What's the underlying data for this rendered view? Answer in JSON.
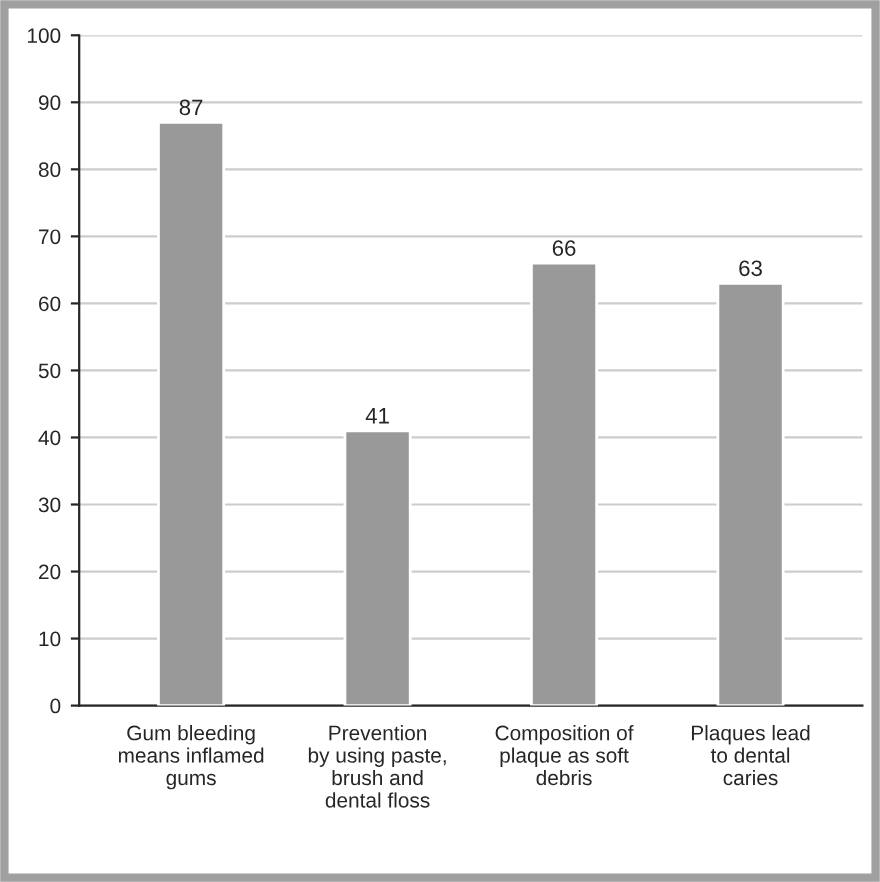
{
  "chart_data": {
    "type": "bar",
    "categories": [
      "Gum bleeding\nmeans inflamed\ngums",
      "Prevention\nby using paste,\nbrush and\ndental floss",
      "Composition of\nplaque as soft\ndebris",
      "Plaques lead\nto dental\ncaries"
    ],
    "values": [
      87,
      41,
      66,
      63
    ],
    "color": "#999999",
    "ylim": [
      0,
      100
    ],
    "yticks": [
      0,
      10,
      20,
      30,
      40,
      50,
      60,
      70,
      80,
      90,
      100
    ],
    "grid": "y",
    "data_labels": true
  }
}
